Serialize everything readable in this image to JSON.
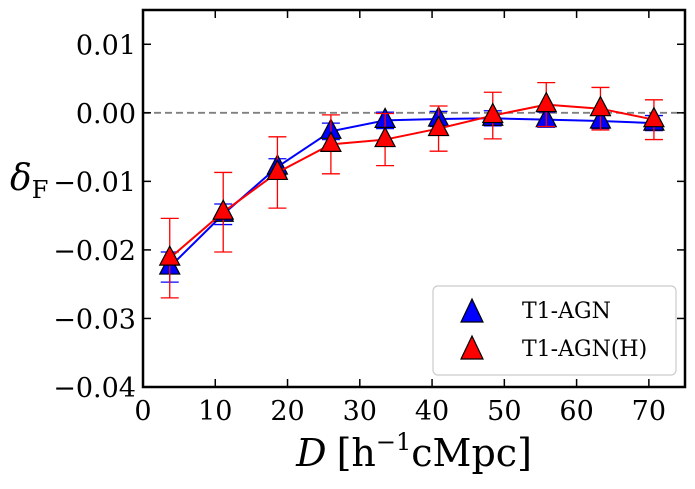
{
  "chart_data": {
    "type": "scatter",
    "title": "",
    "xlabel": {
      "main": "D",
      "unit": "[h",
      "sup": "−1",
      "rest": "cMpc]"
    },
    "ylabel": {
      "main": "δ",
      "sub": "F"
    },
    "xlim": [
      0,
      75
    ],
    "ylim": [
      -0.04,
      0.015
    ],
    "xticks": [
      0,
      10,
      20,
      30,
      40,
      50,
      60,
      70
    ],
    "xtick_labels": [
      "0",
      "10",
      "20",
      "30",
      "40",
      "50",
      "60",
      "70"
    ],
    "yticks": [
      -0.04,
      -0.03,
      -0.02,
      -0.01,
      0.0,
      0.01
    ],
    "ytick_labels": [
      "−0.04",
      "−0.03",
      "−0.02",
      "−0.01",
      "0.00",
      "0.01"
    ],
    "reference_line": {
      "y": 0.0,
      "style": "dashed",
      "color": "#808080"
    },
    "legend_position": "bottom-right",
    "series": [
      {
        "name": "T1-AGN",
        "color": "#0000ff",
        "marker": "triangle",
        "x": [
          3.7,
          11.1,
          18.6,
          26.0,
          33.5,
          40.9,
          48.4,
          55.8,
          63.3,
          70.7
        ],
        "y": [
          -0.0225,
          -0.0148,
          -0.0079,
          -0.0027,
          -0.0011,
          -0.0009,
          -0.0008,
          -0.001,
          -0.0012,
          -0.0015
        ],
        "err": [
          0.0022,
          0.0015,
          0.0012,
          0.0012,
          0.0012,
          0.0011,
          0.0011,
          0.0011,
          0.0011,
          0.0011
        ]
      },
      {
        "name": "T1-AGN(H)",
        "color": "#ff0000",
        "marker": "triangle",
        "x": [
          3.7,
          11.1,
          18.6,
          26.0,
          33.5,
          40.9,
          48.4,
          55.8,
          63.3,
          70.7
        ],
        "y": [
          -0.0212,
          -0.0145,
          -0.0087,
          -0.0046,
          -0.0039,
          -0.0023,
          -0.0004,
          0.0012,
          0.0006,
          -0.001
        ],
        "err": [
          0.0058,
          0.0058,
          0.0052,
          0.0043,
          0.0038,
          0.0033,
          0.0034,
          0.0032,
          0.0031,
          0.0029
        ]
      }
    ]
  }
}
